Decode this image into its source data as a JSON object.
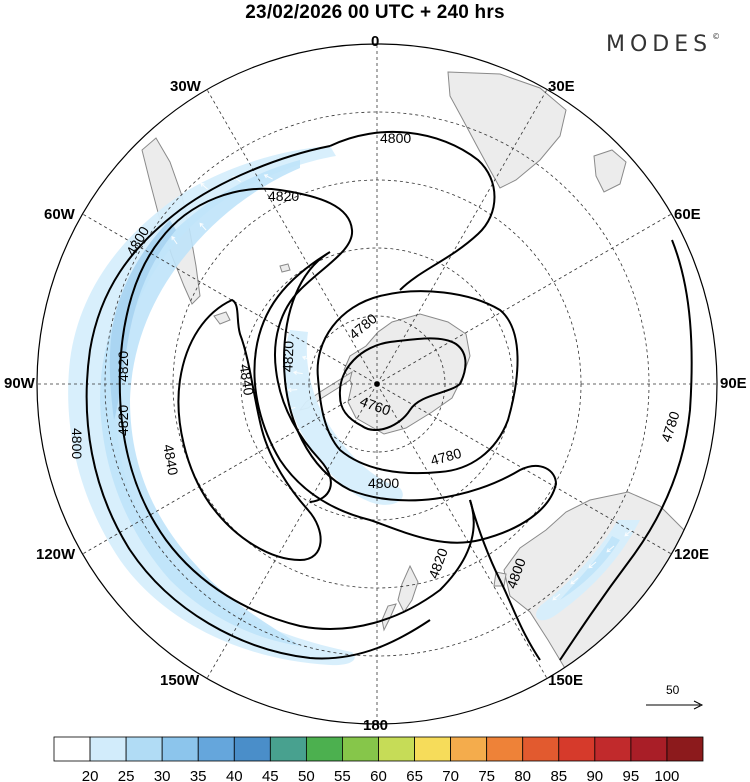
{
  "header": {
    "title": "23/02/2026  00 UTC  + 240 hrs",
    "brand": "MODES",
    "brand_mark": "©"
  },
  "longitude_labels": {
    "lon_0": "0",
    "lon_30e": "30E",
    "lon_60e": "60E",
    "lon_90e": "90E",
    "lon_120e": "120E",
    "lon_150e": "150E",
    "lon_180": "180",
    "lon_150w": "150W",
    "lon_120w": "120W",
    "lon_90w": "90W",
    "lon_60w": "60W",
    "lon_30w": "30W"
  },
  "contour_labels": [
    "4800",
    "4820",
    "4800",
    "4820",
    "4780",
    "4820",
    "4840",
    "4820",
    "4840",
    "4760",
    "4780",
    "4800",
    "4800",
    "4820",
    "4800",
    "4780"
  ],
  "reference_vector": {
    "label": "50"
  },
  "colorbar": {
    "labels": [
      "20",
      "25",
      "30",
      "35",
      "40",
      "45",
      "50",
      "55",
      "60",
      "65",
      "70",
      "75",
      "80",
      "85",
      "90",
      "95",
      "100"
    ],
    "colors": [
      "#ffffff",
      "#d2ecfb",
      "#b1dcf5",
      "#8cc5ec",
      "#65a6dc",
      "#4a8ec9",
      "#48a18f",
      "#4cb04f",
      "#86c64a",
      "#c6dc57",
      "#f6dc5a",
      "#f4ac4c",
      "#ee8238",
      "#e25a2f",
      "#d63a2b",
      "#c12a2c",
      "#a91e27",
      "#8c1a1c"
    ]
  },
  "map_colors": {
    "land": "#ececec",
    "coast": "#8a8a8a",
    "jet_light": "#d6eefc",
    "jet_mid": "#bfe3fa",
    "jet_strong": "#a7d3f1"
  }
}
